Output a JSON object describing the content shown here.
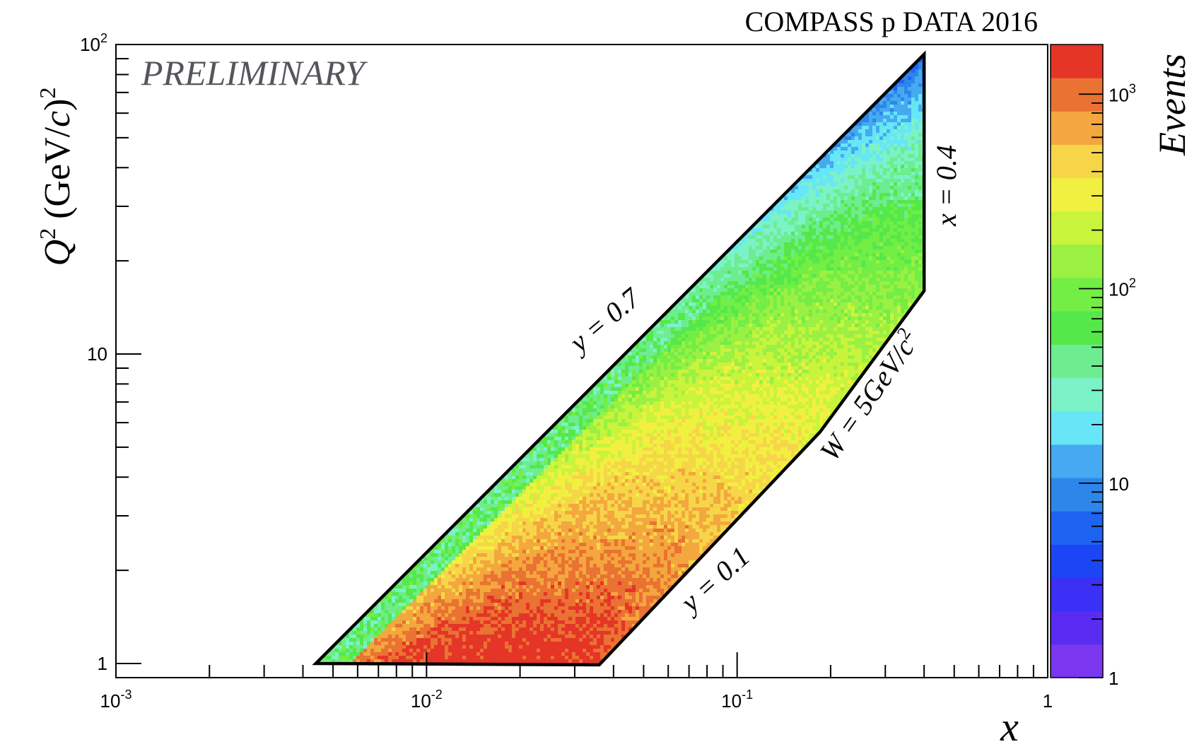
{
  "chart_data": {
    "type": "heatmap",
    "title": "COMPASS p DATA 2016",
    "watermark": "PRELIMINARY",
    "xlabel": "x",
    "ylabel_parts": {
      "q": "Q",
      "sup": "2",
      "unit_open": " (GeV/",
      "unit_c": "c",
      "unit_close": ")",
      "unit_sup": "2"
    },
    "zlabel": "Events",
    "x_scale": "log",
    "y_scale": "log",
    "z_scale": "log",
    "xlim": [
      0.001,
      1
    ],
    "ylim": [
      0.9,
      100
    ],
    "zlim": [
      1,
      1800
    ],
    "x_ticks": [
      {
        "base": "10",
        "exp": "-3"
      },
      {
        "base": "10",
        "exp": "-2"
      },
      {
        "base": "10",
        "exp": "-1"
      },
      {
        "base": "1",
        "exp": ""
      }
    ],
    "y_ticks": [
      {
        "base": "1",
        "exp": ""
      },
      {
        "base": "10",
        "exp": ""
      },
      {
        "base": "10",
        "exp": "2"
      }
    ],
    "z_ticks": [
      {
        "base": "1",
        "exp": ""
      },
      {
        "base": "10",
        "exp": ""
      },
      {
        "base": "10",
        "exp": "2"
      },
      {
        "base": "10",
        "exp": "3"
      }
    ],
    "kinematic_boundary": [
      [
        0.0044,
        1.0
      ],
      [
        0.036,
        0.99
      ],
      [
        0.185,
        5.6
      ],
      [
        0.4,
        16
      ],
      [
        0.4,
        93
      ]
    ],
    "cut_labels": {
      "y_high": "y = 0.7",
      "y_low": "y = 0.1",
      "x_cut": "x = 0.4",
      "w_cut_main": "W = 5GeV/",
      "w_cut_c": "c",
      "w_cut_sup": "2"
    },
    "palette": [
      "#7b36f0",
      "#5a2cf2",
      "#3b30f5",
      "#1b45f5",
      "#1e64f0",
      "#2e86eb",
      "#45aaf0",
      "#66e6f7",
      "#7bf2c7",
      "#6ded8f",
      "#55e84a",
      "#72ee45",
      "#9af043",
      "#c8f43c",
      "#f1f040",
      "#f6d648",
      "#f3a73e",
      "#ea7232",
      "#e53527"
    ],
    "colors": {
      "boundary": "#000000",
      "frame": "#000000",
      "watermark": "#55565c"
    }
  }
}
